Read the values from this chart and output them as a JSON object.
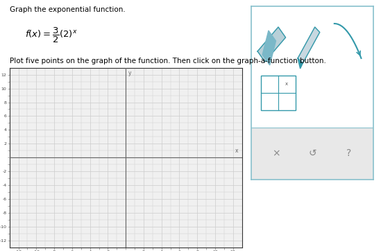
{
  "title_line1": "Graph the exponential function.",
  "formula_text": "$f(x) = \\dfrac{3}{2}(2)^x$",
  "instruction_text": "Plot five points on the graph of the function. Then click on the graph-a-function button.",
  "graph_xlim": [
    -13,
    13
  ],
  "graph_ylim": [
    -13,
    13
  ],
  "x_ticks": [
    -12,
    -10,
    -8,
    -6,
    -4,
    -2,
    2,
    4,
    6,
    8,
    10,
    12
  ],
  "y_ticks": [
    -12,
    -10,
    -8,
    -6,
    -4,
    -2,
    2,
    4,
    6,
    8,
    10,
    12
  ],
  "grid_color": "#cccccc",
  "axis_color": "#666666",
  "bg_color": "#ffffff",
  "graph_bg": "#f0f0f0",
  "panel_bg": "#ffffff",
  "panel_border": "#88c0cc",
  "panel_bottom_bg": "#e8e8e8",
  "icon_color": "#3399aa"
}
